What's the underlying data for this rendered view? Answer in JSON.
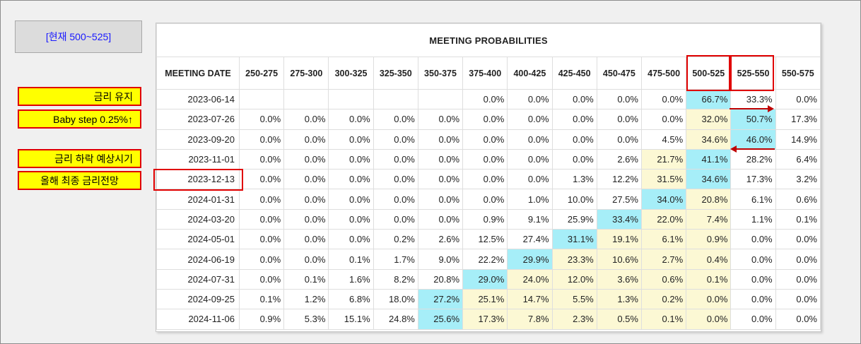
{
  "current_label": "[현재 500~525]",
  "notes": {
    "hold": "금리 유지",
    "baby_step": "Baby step 0.25%↑",
    "cut_timing": "금리 하락 예상시기",
    "year_end": "올해 최종 금리전망"
  },
  "table": {
    "title": "MEETING PROBABILITIES",
    "headers": [
      "MEETING DATE",
      "250-275",
      "275-300",
      "300-325",
      "325-350",
      "350-375",
      "375-400",
      "400-425",
      "425-450",
      "450-475",
      "475-500",
      "500-525",
      "525-550",
      "550-575"
    ],
    "rows": [
      {
        "date": "2023-06-14",
        "values": [
          "",
          "",
          "",
          "",
          "",
          "0.0%",
          "0.0%",
          "0.0%",
          "0.0%",
          "0.0%",
          "66.7%",
          "33.3%",
          "0.0%"
        ]
      },
      {
        "date": "2023-07-26",
        "values": [
          "0.0%",
          "0.0%",
          "0.0%",
          "0.0%",
          "0.0%",
          "0.0%",
          "0.0%",
          "0.0%",
          "0.0%",
          "0.0%",
          "32.0%",
          "50.7%",
          "17.3%"
        ]
      },
      {
        "date": "2023-09-20",
        "values": [
          "0.0%",
          "0.0%",
          "0.0%",
          "0.0%",
          "0.0%",
          "0.0%",
          "0.0%",
          "0.0%",
          "0.0%",
          "4.5%",
          "34.6%",
          "46.0%",
          "14.9%"
        ]
      },
      {
        "date": "2023-11-01",
        "values": [
          "0.0%",
          "0.0%",
          "0.0%",
          "0.0%",
          "0.0%",
          "0.0%",
          "0.0%",
          "0.0%",
          "2.6%",
          "21.7%",
          "41.1%",
          "28.2%",
          "6.4%"
        ]
      },
      {
        "date": "2023-12-13",
        "values": [
          "0.0%",
          "0.0%",
          "0.0%",
          "0.0%",
          "0.0%",
          "0.0%",
          "0.0%",
          "1.3%",
          "12.2%",
          "31.5%",
          "34.6%",
          "17.3%",
          "3.2%"
        ]
      },
      {
        "date": "2024-01-31",
        "values": [
          "0.0%",
          "0.0%",
          "0.0%",
          "0.0%",
          "0.0%",
          "0.0%",
          "1.0%",
          "10.0%",
          "27.5%",
          "34.0%",
          "20.8%",
          "6.1%",
          "0.6%"
        ]
      },
      {
        "date": "2024-03-20",
        "values": [
          "0.0%",
          "0.0%",
          "0.0%",
          "0.0%",
          "0.0%",
          "0.9%",
          "9.1%",
          "25.9%",
          "33.4%",
          "22.0%",
          "7.4%",
          "1.1%",
          "0.1%"
        ]
      },
      {
        "date": "2024-05-01",
        "values": [
          "0.0%",
          "0.0%",
          "0.0%",
          "0.2%",
          "2.6%",
          "12.5%",
          "27.4%",
          "31.1%",
          "19.1%",
          "6.1%",
          "0.9%",
          "0.0%",
          "0.0%"
        ]
      },
      {
        "date": "2024-06-19",
        "values": [
          "0.0%",
          "0.0%",
          "0.1%",
          "1.7%",
          "9.0%",
          "22.2%",
          "29.9%",
          "23.3%",
          "10.6%",
          "2.7%",
          "0.4%",
          "0.0%",
          "0.0%"
        ]
      },
      {
        "date": "2024-07-31",
        "values": [
          "0.0%",
          "0.1%",
          "1.6%",
          "8.2%",
          "20.8%",
          "29.0%",
          "24.0%",
          "12.0%",
          "3.6%",
          "0.6%",
          "0.1%",
          "0.0%",
          "0.0%"
        ]
      },
      {
        "date": "2024-09-25",
        "values": [
          "0.1%",
          "1.2%",
          "6.8%",
          "18.0%",
          "27.2%",
          "25.1%",
          "14.7%",
          "5.5%",
          "1.3%",
          "0.2%",
          "0.0%",
          "0.0%",
          "0.0%"
        ]
      },
      {
        "date": "2024-11-06",
        "values": [
          "0.9%",
          "5.3%",
          "15.1%",
          "24.8%",
          "25.6%",
          "17.3%",
          "7.8%",
          "2.3%",
          "0.5%",
          "0.1%",
          "0.0%",
          "0.0%",
          "0.0%"
        ]
      }
    ],
    "highlight": {
      "blue_color": "#a6eef8",
      "yellow_color": "#fcf8d4"
    }
  }
}
